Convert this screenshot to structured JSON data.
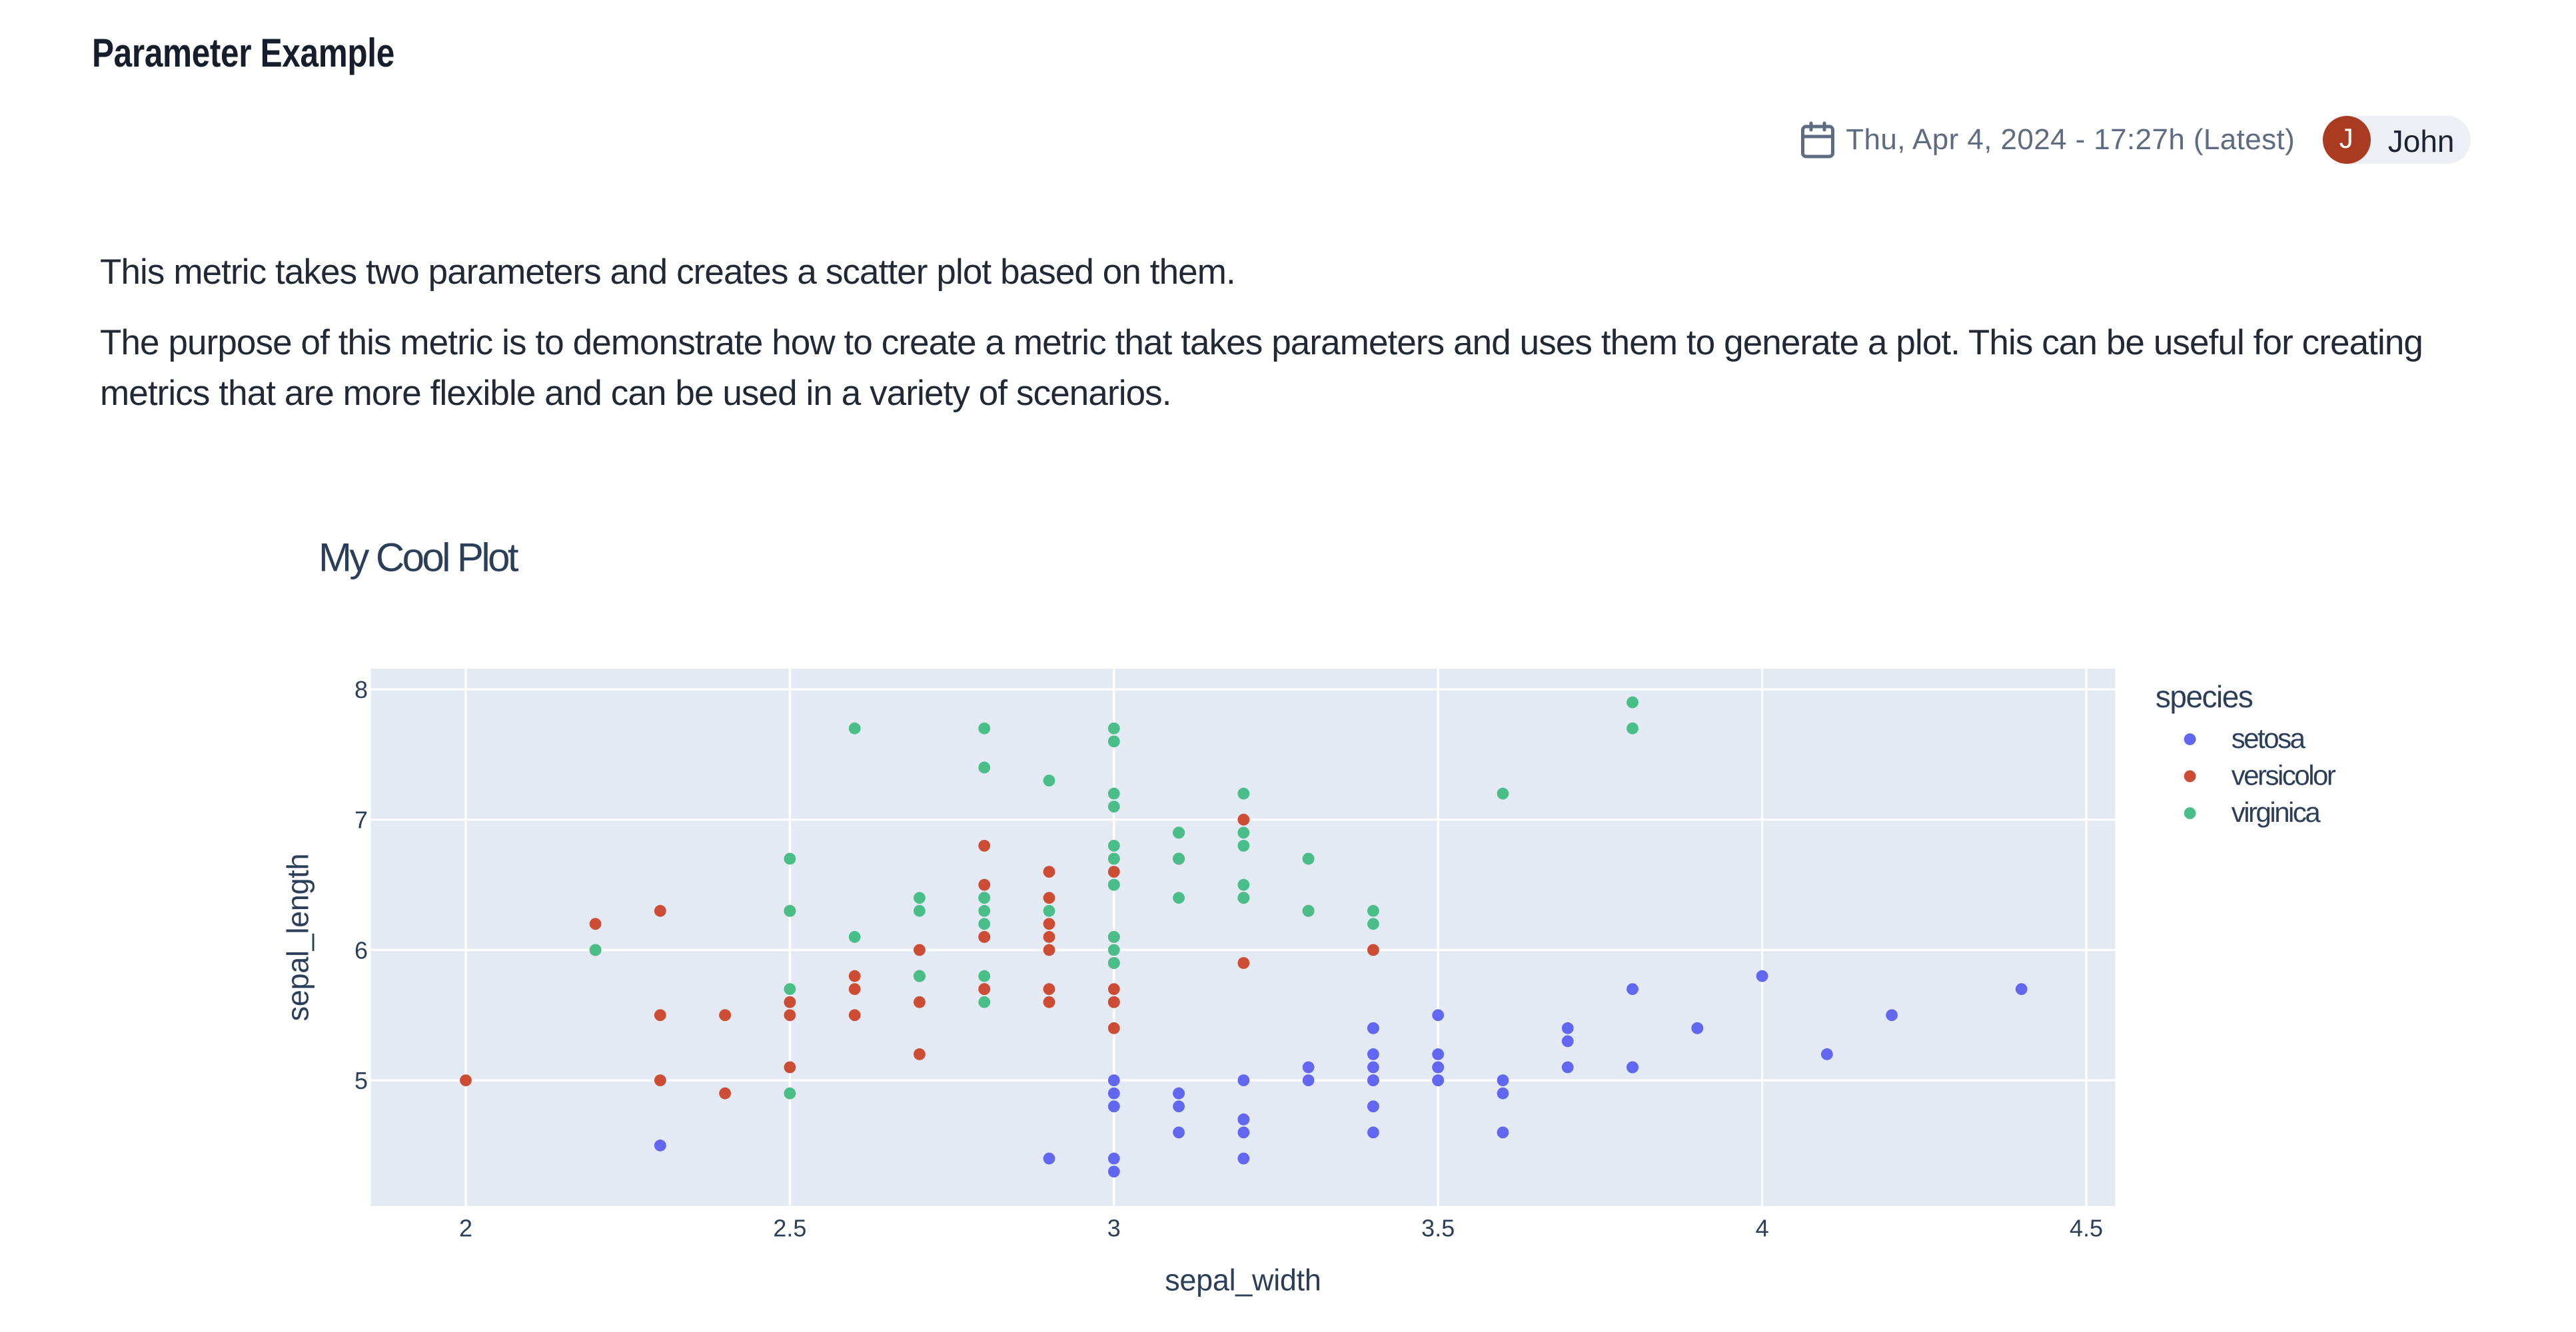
{
  "page": {
    "title": "Parameter Example",
    "background_color": "#ffffff"
  },
  "header": {
    "calendar_icon": "calendar-icon",
    "date_label": "Thu, Apr 4, 2024 - 17:27h (Latest)",
    "user": {
      "initial": "J",
      "name": "John",
      "avatar_color": "#a93c20",
      "chip_background": "#eceff4"
    }
  },
  "description": {
    "paragraph1": "This metric takes two parameters and creates a scatter plot based on them.",
    "paragraph2": "The purpose of this metric is to demonstrate how to create a metric that takes parameters and uses them to generate a plot. This can be useful for creating metrics that are more flexible and can be used in a variety of scenarios."
  },
  "chart_data": {
    "type": "scatter",
    "title": "My Cool Plot",
    "xlabel": "sepal_width",
    "ylabel": "sepal_length",
    "xlim": [
      1.8534,
      4.5466
    ],
    "ylim": [
      4.042,
      8.158
    ],
    "x_ticks": [
      2,
      2.5,
      3,
      3.5,
      4,
      4.5
    ],
    "y_ticks": [
      5,
      6,
      7,
      8
    ],
    "grid": true,
    "plot_background": "#e4eaf4",
    "grid_color": "#ffffff",
    "text_color": "#2c3f5a",
    "legend": {
      "title": "species",
      "position": "right"
    },
    "series": [
      {
        "name": "setosa",
        "color": "#6167f0",
        "points": [
          [
            3.5,
            5.1
          ],
          [
            3.0,
            4.9
          ],
          [
            3.2,
            4.7
          ],
          [
            3.1,
            4.6
          ],
          [
            3.6,
            5.0
          ],
          [
            3.9,
            5.4
          ],
          [
            3.4,
            4.6
          ],
          [
            3.4,
            5.0
          ],
          [
            2.9,
            4.4
          ],
          [
            3.1,
            4.9
          ],
          [
            3.7,
            5.4
          ],
          [
            3.4,
            4.8
          ],
          [
            3.0,
            4.8
          ],
          [
            3.0,
            4.3
          ],
          [
            4.0,
            5.8
          ],
          [
            4.4,
            5.7
          ],
          [
            3.9,
            5.4
          ],
          [
            3.5,
            5.1
          ],
          [
            3.8,
            5.7
          ],
          [
            3.8,
            5.1
          ],
          [
            3.4,
            5.4
          ],
          [
            3.7,
            5.1
          ],
          [
            3.6,
            4.6
          ],
          [
            3.3,
            5.1
          ],
          [
            3.4,
            4.8
          ],
          [
            3.0,
            5.0
          ],
          [
            3.4,
            5.0
          ],
          [
            3.5,
            5.2
          ],
          [
            3.4,
            5.2
          ],
          [
            3.2,
            4.7
          ],
          [
            3.1,
            4.8
          ],
          [
            3.4,
            5.4
          ],
          [
            4.1,
            5.2
          ],
          [
            4.2,
            5.5
          ],
          [
            3.1,
            4.9
          ],
          [
            3.2,
            5.0
          ],
          [
            3.5,
            5.5
          ],
          [
            3.6,
            4.9
          ],
          [
            3.0,
            4.4
          ],
          [
            3.4,
            5.1
          ],
          [
            3.5,
            5.0
          ],
          [
            2.3,
            4.5
          ],
          [
            3.2,
            4.4
          ],
          [
            3.5,
            5.0
          ],
          [
            3.8,
            5.1
          ],
          [
            3.0,
            4.8
          ],
          [
            3.8,
            5.1
          ],
          [
            3.2,
            4.6
          ],
          [
            3.7,
            5.3
          ],
          [
            3.3,
            5.0
          ]
        ]
      },
      {
        "name": "versicolor",
        "color": "#cd4d34",
        "points": [
          [
            3.2,
            7.0
          ],
          [
            3.2,
            6.4
          ],
          [
            3.1,
            6.9
          ],
          [
            2.3,
            5.5
          ],
          [
            2.8,
            6.5
          ],
          [
            2.8,
            5.7
          ],
          [
            3.3,
            6.3
          ],
          [
            2.4,
            4.9
          ],
          [
            2.9,
            6.6
          ],
          [
            2.7,
            5.2
          ],
          [
            2.0,
            5.0
          ],
          [
            3.0,
            5.9
          ],
          [
            2.2,
            6.0
          ],
          [
            2.9,
            6.1
          ],
          [
            2.9,
            5.6
          ],
          [
            3.1,
            6.7
          ],
          [
            3.0,
            5.6
          ],
          [
            2.7,
            5.8
          ],
          [
            2.2,
            6.2
          ],
          [
            2.5,
            5.6
          ],
          [
            3.2,
            5.9
          ],
          [
            2.8,
            6.1
          ],
          [
            2.5,
            6.3
          ],
          [
            2.8,
            6.1
          ],
          [
            2.9,
            6.4
          ],
          [
            3.0,
            6.6
          ],
          [
            2.8,
            6.8
          ],
          [
            3.0,
            6.7
          ],
          [
            2.9,
            6.0
          ],
          [
            2.6,
            5.7
          ],
          [
            2.4,
            5.5
          ],
          [
            2.4,
            5.5
          ],
          [
            2.7,
            5.8
          ],
          [
            2.7,
            6.0
          ],
          [
            3.0,
            5.4
          ],
          [
            3.4,
            6.0
          ],
          [
            3.1,
            6.7
          ],
          [
            2.3,
            6.3
          ],
          [
            3.0,
            5.6
          ],
          [
            2.5,
            5.5
          ],
          [
            2.6,
            5.5
          ],
          [
            3.0,
            6.1
          ],
          [
            2.6,
            5.8
          ],
          [
            2.3,
            5.0
          ],
          [
            2.7,
            5.6
          ],
          [
            3.0,
            5.7
          ],
          [
            2.9,
            5.7
          ],
          [
            2.9,
            6.2
          ],
          [
            2.5,
            5.1
          ],
          [
            2.8,
            5.7
          ]
        ]
      },
      {
        "name": "virginica",
        "color": "#4abe89",
        "points": [
          [
            3.3,
            6.3
          ],
          [
            2.7,
            5.8
          ],
          [
            3.0,
            7.1
          ],
          [
            2.9,
            6.3
          ],
          [
            3.0,
            6.5
          ],
          [
            3.0,
            7.6
          ],
          [
            2.5,
            4.9
          ],
          [
            2.9,
            7.3
          ],
          [
            2.5,
            6.7
          ],
          [
            3.6,
            7.2
          ],
          [
            3.2,
            6.5
          ],
          [
            2.7,
            6.4
          ],
          [
            3.0,
            6.8
          ],
          [
            2.5,
            5.7
          ],
          [
            2.8,
            5.8
          ],
          [
            3.2,
            6.4
          ],
          [
            3.0,
            6.5
          ],
          [
            3.8,
            7.7
          ],
          [
            2.6,
            7.7
          ],
          [
            2.2,
            6.0
          ],
          [
            3.2,
            6.9
          ],
          [
            2.8,
            5.6
          ],
          [
            2.8,
            7.7
          ],
          [
            2.7,
            6.3
          ],
          [
            3.3,
            6.7
          ],
          [
            3.2,
            7.2
          ],
          [
            2.8,
            6.2
          ],
          [
            3.0,
            6.1
          ],
          [
            2.8,
            6.4
          ],
          [
            3.0,
            7.2
          ],
          [
            2.8,
            7.4
          ],
          [
            3.8,
            7.9
          ],
          [
            2.8,
            6.4
          ],
          [
            2.8,
            6.3
          ],
          [
            2.6,
            6.1
          ],
          [
            3.0,
            7.7
          ],
          [
            3.4,
            6.3
          ],
          [
            3.1,
            6.4
          ],
          [
            3.0,
            6.0
          ],
          [
            3.1,
            6.9
          ],
          [
            3.1,
            6.7
          ],
          [
            3.1,
            6.9
          ],
          [
            2.7,
            5.8
          ],
          [
            3.2,
            6.8
          ],
          [
            3.3,
            6.7
          ],
          [
            3.0,
            6.7
          ],
          [
            2.5,
            6.3
          ],
          [
            3.0,
            6.5
          ],
          [
            3.4,
            6.2
          ],
          [
            3.0,
            5.9
          ]
        ]
      }
    ]
  }
}
